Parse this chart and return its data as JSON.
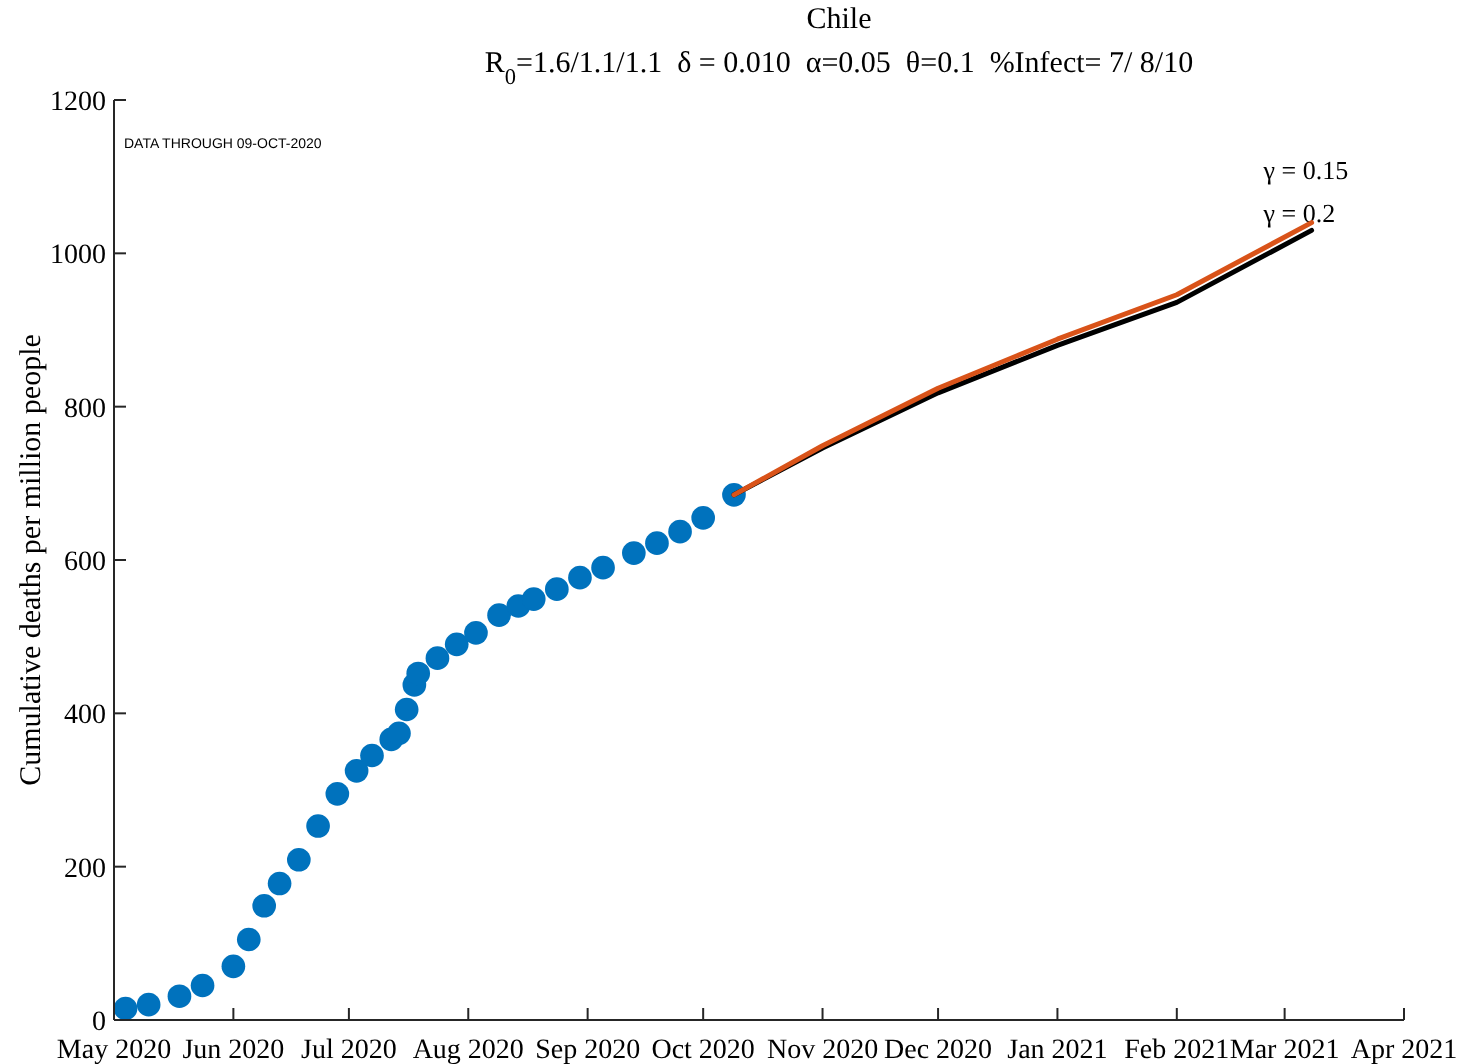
{
  "chart_data": {
    "type": "line",
    "title": "Chile",
    "subtitle": "R$_{0}$=1.6/1.1/1.1  δ = 0.010  α=0.05  θ=0.1  %Infect= 7/ 8/10",
    "ylabel": "Cumulative deaths per million people",
    "annotations": [
      "DATA THROUGH 09-OCT-2020"
    ],
    "xlim": [
      "2020-05-01",
      "2021-04-01"
    ],
    "xticks": [
      {
        "value": "2020-05-01",
        "label": "May 2020"
      },
      {
        "value": "2020-06-01",
        "label": "Jun 2020"
      },
      {
        "value": "2020-07-01",
        "label": "Jul 2020"
      },
      {
        "value": "2020-08-01",
        "label": "Aug 2020"
      },
      {
        "value": "2020-09-01",
        "label": "Sep 2020"
      },
      {
        "value": "2020-10-01",
        "label": "Oct 2020"
      },
      {
        "value": "2020-11-01",
        "label": "Nov 2020"
      },
      {
        "value": "2020-12-01",
        "label": "Dec 2020"
      },
      {
        "value": "2021-01-01",
        "label": "Jan 2021"
      },
      {
        "value": "2021-02-01",
        "label": "Feb 2021"
      },
      {
        "value": "2021-03-01",
        "label": "Mar 2021"
      },
      {
        "value": "2021-04-01",
        "label": "Apr 2021"
      }
    ],
    "ylim": [
      0,
      1200
    ],
    "yticks": [
      0,
      200,
      400,
      600,
      800,
      1000,
      1200
    ],
    "grid": false,
    "series": [
      {
        "name": "γ = 0.2",
        "color": "#000000",
        "x": [
          "2020-10-09",
          "2020-11-01",
          "2020-12-01",
          "2021-01-01",
          "2021-02-01",
          "2021-03-08"
        ],
        "values": [
          685,
          746,
          818,
          880,
          936,
          1030
        ]
      },
      {
        "name": "γ = 0.15",
        "color": "#d95319",
        "x": [
          "2020-10-09",
          "2020-11-01",
          "2020-12-01",
          "2021-01-01",
          "2021-02-01",
          "2021-03-08"
        ],
        "values": [
          685,
          749,
          824,
          888,
          946,
          1040
        ]
      },
      {
        "type": "scatter",
        "marker": "circle",
        "color": "#0072bd",
        "x": [
          "2020-05-04",
          "2020-05-10",
          "2020-05-18",
          "2020-05-24",
          "2020-06-01",
          "2020-06-05",
          "2020-06-09",
          "2020-06-13",
          "2020-06-18",
          "2020-06-23",
          "2020-06-28",
          "2020-07-03",
          "2020-07-07",
          "2020-07-12",
          "2020-07-14",
          "2020-07-16",
          "2020-07-18",
          "2020-07-19",
          "2020-07-24",
          "2020-07-29",
          "2020-08-03",
          "2020-08-09",
          "2020-08-14",
          "2020-08-18",
          "2020-08-24",
          "2020-08-30",
          "2020-09-05",
          "2020-09-13",
          "2020-09-19",
          "2020-09-25",
          "2020-10-01",
          "2020-10-09"
        ],
        "values": [
          15,
          20,
          31,
          45,
          70,
          105,
          149,
          178,
          209,
          253,
          295,
          325,
          345,
          366,
          374,
          405,
          437,
          452,
          472,
          490,
          505,
          528,
          540,
          549,
          562,
          577,
          590,
          609,
          622,
          637,
          655,
          685
        ]
      }
    ]
  }
}
